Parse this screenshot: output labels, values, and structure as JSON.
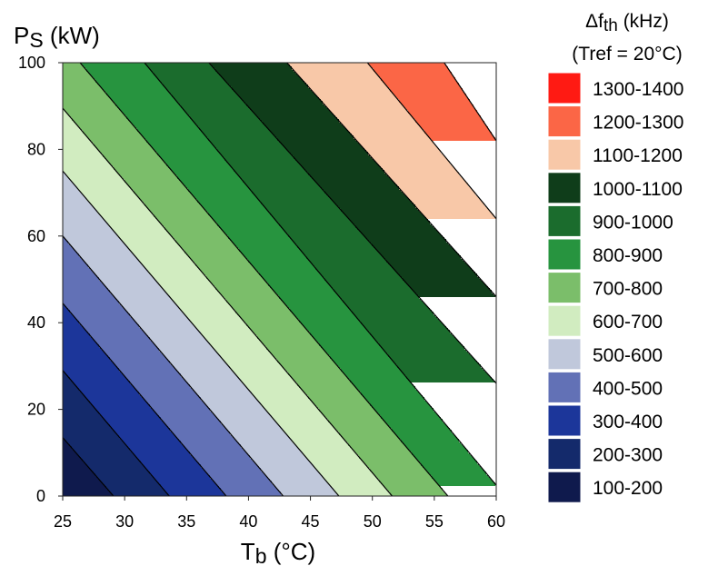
{
  "chart_data": {
    "type": "contour",
    "x": {
      "label_main": "T",
      "label_sub": "b",
      "label_unit": " (°C)",
      "range": [
        25,
        60
      ],
      "ticks": [
        25,
        30,
        35,
        40,
        45,
        50,
        55,
        60
      ]
    },
    "y": {
      "label_main": "P",
      "label_sub": "S",
      "label_unit": " (kW)",
      "range": [
        0,
        100
      ],
      "ticks": [
        0,
        20,
        40,
        60,
        80,
        100
      ]
    },
    "legend": {
      "title_line1_delta": "Δ",
      "title_line1_main": "f",
      "title_line1_sub": "th",
      "title_line1_unit": " (kHz)",
      "title_line2": "(Tref = 20°C)",
      "position": "right"
    },
    "bands": [
      {
        "label": "100-200",
        "color": "#0f1a4d"
      },
      {
        "label": "200-300",
        "color": "#142a6b"
      },
      {
        "label": "300-400",
        "color": "#1c369a"
      },
      {
        "label": "400-500",
        "color": "#6271b6"
      },
      {
        "label": "500-600",
        "color": "#c0c8db"
      },
      {
        "label": "600-700",
        "color": "#d1ecc0"
      },
      {
        "label": "700-800",
        "color": "#7bbe6a"
      },
      {
        "label": "800-900",
        "color": "#27943f"
      },
      {
        "label": "900-1000",
        "color": "#1b6c2d"
      },
      {
        "label": "1000-1100",
        "color": "#0f3d1a"
      },
      {
        "label": "1100-1200",
        "color": "#f8c8a8"
      },
      {
        "label": "1200-1300",
        "color": "#fb6646"
      },
      {
        "label": "1300-1400",
        "color": "#ff1a13"
      }
    ],
    "contour_levels": [
      200,
      300,
      400,
      500,
      600,
      700,
      800,
      900,
      1000,
      1100,
      1200,
      1300
    ],
    "boundary_points": [
      {
        "level": 200,
        "points": [
          [
            25,
            13.5
          ],
          [
            29.1,
            0
          ]
        ]
      },
      {
        "level": 300,
        "points": [
          [
            25,
            29
          ],
          [
            33.6,
            0
          ]
        ]
      },
      {
        "level": 400,
        "points": [
          [
            25,
            44.5
          ],
          [
            38.2,
            0
          ]
        ]
      },
      {
        "level": 500,
        "points": [
          [
            25,
            60
          ],
          [
            42.8,
            0
          ]
        ]
      },
      {
        "level": 600,
        "points": [
          [
            25,
            75
          ],
          [
            47.3,
            0
          ]
        ]
      },
      {
        "level": 700,
        "points": [
          [
            25,
            89.5
          ],
          [
            51.6,
            0
          ]
        ]
      },
      {
        "level": 800,
        "points": [
          [
            26.4,
            100
          ],
          [
            56.1,
            0
          ]
        ]
      },
      {
        "level": 900,
        "points": [
          [
            31.6,
            100
          ],
          [
            60,
            2.5
          ]
        ]
      },
      {
        "level": 1000,
        "points": [
          [
            36.8,
            100
          ],
          [
            60,
            26
          ]
        ]
      },
      {
        "level": 1100,
        "points": [
          [
            43.1,
            100
          ],
          [
            60,
            46
          ]
        ]
      },
      {
        "level": 1200,
        "points": [
          [
            49.6,
            100
          ],
          [
            60,
            64
          ]
        ]
      },
      {
        "level": 1300,
        "points": [
          [
            55.8,
            100
          ],
          [
            60,
            82
          ]
        ]
      }
    ]
  }
}
